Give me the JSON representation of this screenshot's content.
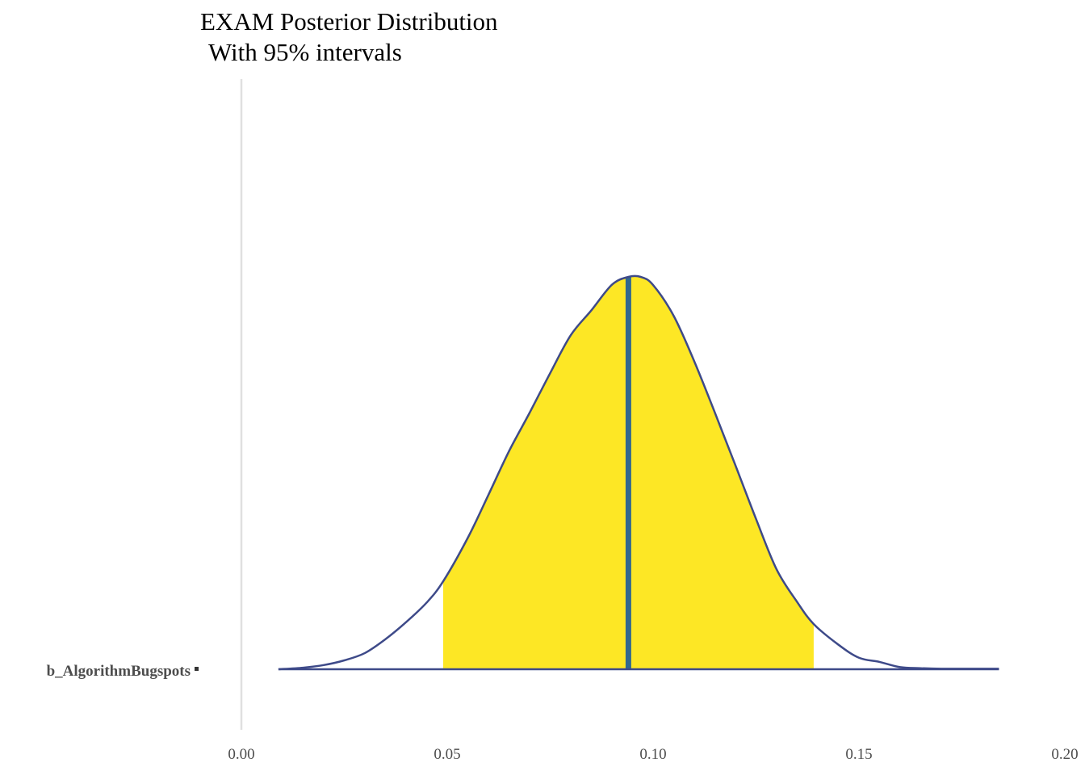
{
  "chart_data": {
    "type": "area",
    "title": "EXAM Posterior Distribution",
    "subtitle": "With 95% intervals",
    "xlabel": "",
    "ylabel": "",
    "xlim": [
      0.0,
      0.2
    ],
    "x_ticks": [
      "0.00",
      "0.05",
      "0.10",
      "0.15",
      "0.20"
    ],
    "x_tick_values": [
      0.0,
      0.05,
      0.1,
      0.15,
      0.2
    ],
    "y_categories": [
      "b_AlgorithmBugspots"
    ],
    "grid": "vertical line at x = 0 only",
    "legend": "none",
    "series": [
      {
        "parameter": "b_AlgorithmBugspots",
        "median": 0.094,
        "interval_95": [
          0.049,
          0.139
        ],
        "density_relative": {
          "x": [
            0.009,
            0.015,
            0.02,
            0.025,
            0.03,
            0.035,
            0.04,
            0.045,
            0.049,
            0.055,
            0.06,
            0.065,
            0.07,
            0.075,
            0.08,
            0.085,
            0.09,
            0.094,
            0.097,
            0.1,
            0.105,
            0.11,
            0.115,
            0.12,
            0.125,
            0.13,
            0.135,
            0.139,
            0.145,
            0.15,
            0.155,
            0.16,
            0.165,
            0.17,
            0.175,
            0.184
          ],
          "y": [
            0.0,
            0.006,
            0.016,
            0.034,
            0.062,
            0.115,
            0.18,
            0.255,
            0.336,
            0.503,
            0.667,
            0.834,
            0.981,
            1.133,
            1.278,
            1.373,
            1.471,
            1.501,
            1.501,
            1.47,
            1.352,
            1.178,
            0.982,
            0.78,
            0.575,
            0.382,
            0.257,
            0.173,
            0.094,
            0.044,
            0.028,
            0.008,
            0.004,
            0.002,
            0.002,
            0.002
          ]
        }
      }
    ],
    "colors": {
      "interval_fill": "#fde725",
      "density_line": "#3e4a89",
      "median_line": "#31688e",
      "zero_line": "#e0e0e0"
    }
  }
}
